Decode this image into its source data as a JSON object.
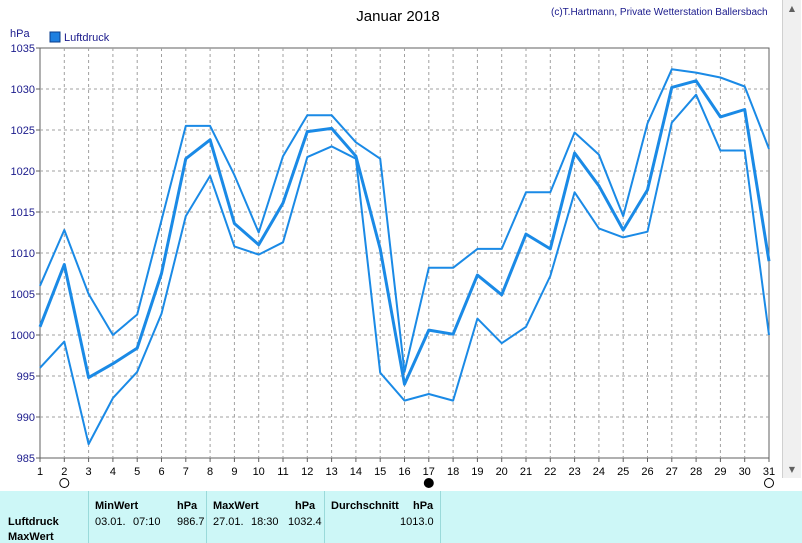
{
  "header": {
    "title": "Januar 2018",
    "copyright": "(c)T.Hartmann, Private Wetterstation Ballersbach",
    "unit": "hPa"
  },
  "colors": {
    "line": "#1a8ae6",
    "grid": "#a0a0a0",
    "legend_box": "#1e7fe0",
    "stats_bg": "#cdf7f7"
  },
  "chart_data": {
    "type": "line",
    "legend": [
      "Luftdruck"
    ],
    "ylabel": "hPa",
    "ylim": [
      985,
      1035
    ],
    "yticks": [
      985,
      990,
      995,
      1000,
      1005,
      1010,
      1015,
      1020,
      1025,
      1030,
      1035
    ],
    "x": [
      1,
      2,
      3,
      4,
      5,
      6,
      7,
      8,
      9,
      10,
      11,
      12,
      13,
      14,
      15,
      16,
      17,
      18,
      19,
      20,
      21,
      22,
      23,
      24,
      25,
      26,
      27,
      28,
      29,
      30,
      31
    ],
    "grid": true,
    "moon_phases": [
      {
        "day": 2,
        "phase": "full-moon-icon"
      },
      {
        "day": 17,
        "phase": "new-moon-icon"
      },
      {
        "day": 31,
        "phase": "full-moon-icon"
      }
    ],
    "series": [
      {
        "name": "Luftdruck",
        "role": "max",
        "values": [
          1006.0,
          1012.8,
          1005.0,
          1000.0,
          1002.5,
          1014.0,
          1025.5,
          1025.5,
          1019.5,
          1012.5,
          1021.8,
          1026.8,
          1026.8,
          1023.5,
          1021.5,
          995.5,
          1008.2,
          1008.2,
          1010.5,
          1010.5,
          1017.4,
          1017.4,
          1024.7,
          1022.0,
          1014.5,
          1025.8,
          1032.4,
          1032.0,
          1031.4,
          1030.3,
          1022.7
        ]
      },
      {
        "name": "Luftdruck",
        "role": "mean",
        "values": [
          1001.0,
          1008.6,
          994.8,
          996.5,
          998.4,
          1007.5,
          1021.5,
          1023.8,
          1013.6,
          1011.0,
          1016.1,
          1024.8,
          1025.2,
          1021.8,
          1010.5,
          994.0,
          1000.6,
          1000.1,
          1007.3,
          1004.9,
          1012.3,
          1010.5,
          1022.2,
          1018.2,
          1012.8,
          1017.7,
          1030.2,
          1031.0,
          1026.6,
          1027.5,
          1009.0
        ]
      },
      {
        "name": "Luftdruck",
        "role": "min",
        "values": [
          996.0,
          999.2,
          986.7,
          992.3,
          995.5,
          1002.6,
          1014.5,
          1019.4,
          1010.8,
          1009.8,
          1011.3,
          1021.7,
          1023.0,
          1021.5,
          995.4,
          992.0,
          992.8,
          992.0,
          1002.0,
          999.0,
          1001.0,
          1007.2,
          1017.4,
          1013.0,
          1011.9,
          1012.6,
          1025.9,
          1029.3,
          1022.5,
          1022.5,
          1000.0
        ]
      }
    ]
  },
  "stats": {
    "row_label": "Luftdruck",
    "row_label_2": "MaxWert",
    "min": {
      "header": "MinWert",
      "unit": "hPa",
      "date": "03.01.",
      "time": "07:10",
      "value": "986.7"
    },
    "max": {
      "header": "MaxWert",
      "unit": "hPa",
      "date": "27.01.",
      "time": "18:30",
      "value": "1032.4"
    },
    "avg": {
      "header": "Durchschnitt",
      "unit": "hPa",
      "value": "1013.0"
    }
  }
}
